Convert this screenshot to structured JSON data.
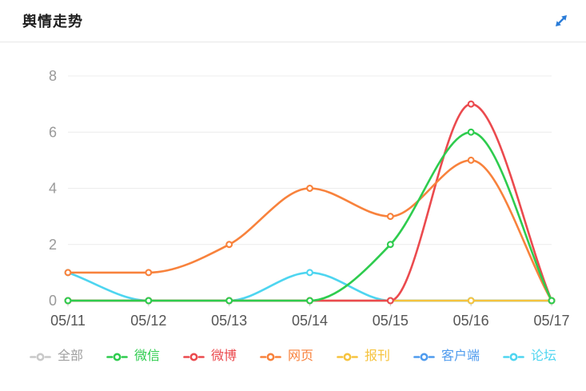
{
  "header": {
    "title": "舆情走势"
  },
  "colors": {
    "accent_icon_blue": "#2a7cd8",
    "title_text": "#1f1f1f",
    "divider": "#e7e7e7",
    "gridline": "#ececec",
    "axis_tick": "#cccccc",
    "y_axis_label": "#999999",
    "x_axis_label": "#555555",
    "inactive_legend": "#a0a0a0"
  },
  "chart_data": {
    "type": "line",
    "title": "舆情走势",
    "categories": [
      "05/11",
      "05/12",
      "05/13",
      "05/14",
      "05/15",
      "05/16",
      "05/17"
    ],
    "y_ticks": [
      0,
      2,
      4,
      6,
      8
    ],
    "ylim": [
      0,
      8
    ],
    "smooth": true,
    "grid": "horizontal-gridlines",
    "legend_position": "bottom",
    "series": [
      {
        "name": "全部",
        "key": "all",
        "color": "#c9c9c9",
        "label_color": "#a0a0a0",
        "selected": false,
        "values": null,
        "z": 0
      },
      {
        "name": "微信",
        "key": "wechat",
        "color": "#2ecc4e",
        "label_color": "#2ecc4e",
        "selected": true,
        "values": [
          0,
          0,
          0,
          0,
          2,
          6,
          0
        ],
        "z": 6
      },
      {
        "name": "微博",
        "key": "weibo",
        "color": "#eb4a4e",
        "label_color": "#eb4a4e",
        "selected": true,
        "values": [
          0,
          0,
          0,
          0,
          0,
          7,
          0
        ],
        "z": 4
      },
      {
        "name": "网页",
        "key": "webpage",
        "color": "#f8823c",
        "label_color": "#f8823c",
        "selected": true,
        "values": [
          1,
          1,
          2,
          4,
          3,
          5,
          0
        ],
        "z": 5
      },
      {
        "name": "报刊",
        "key": "press",
        "color": "#f6c33e",
        "label_color": "#f6c33e",
        "selected": true,
        "values": [
          0,
          0,
          0,
          0,
          0,
          0,
          0
        ],
        "z": 3
      },
      {
        "name": "客户端",
        "key": "client",
        "color": "#4f9bee",
        "label_color": "#4f9bee",
        "selected": true,
        "values": [
          0,
          0,
          0,
          0,
          0,
          0,
          0
        ],
        "z": 1
      },
      {
        "name": "论坛",
        "key": "forum",
        "color": "#4ed5f0",
        "label_color": "#4ed5f0",
        "selected": true,
        "values": [
          1,
          0,
          0,
          1,
          0,
          0,
          0
        ],
        "z": 2
      }
    ]
  }
}
